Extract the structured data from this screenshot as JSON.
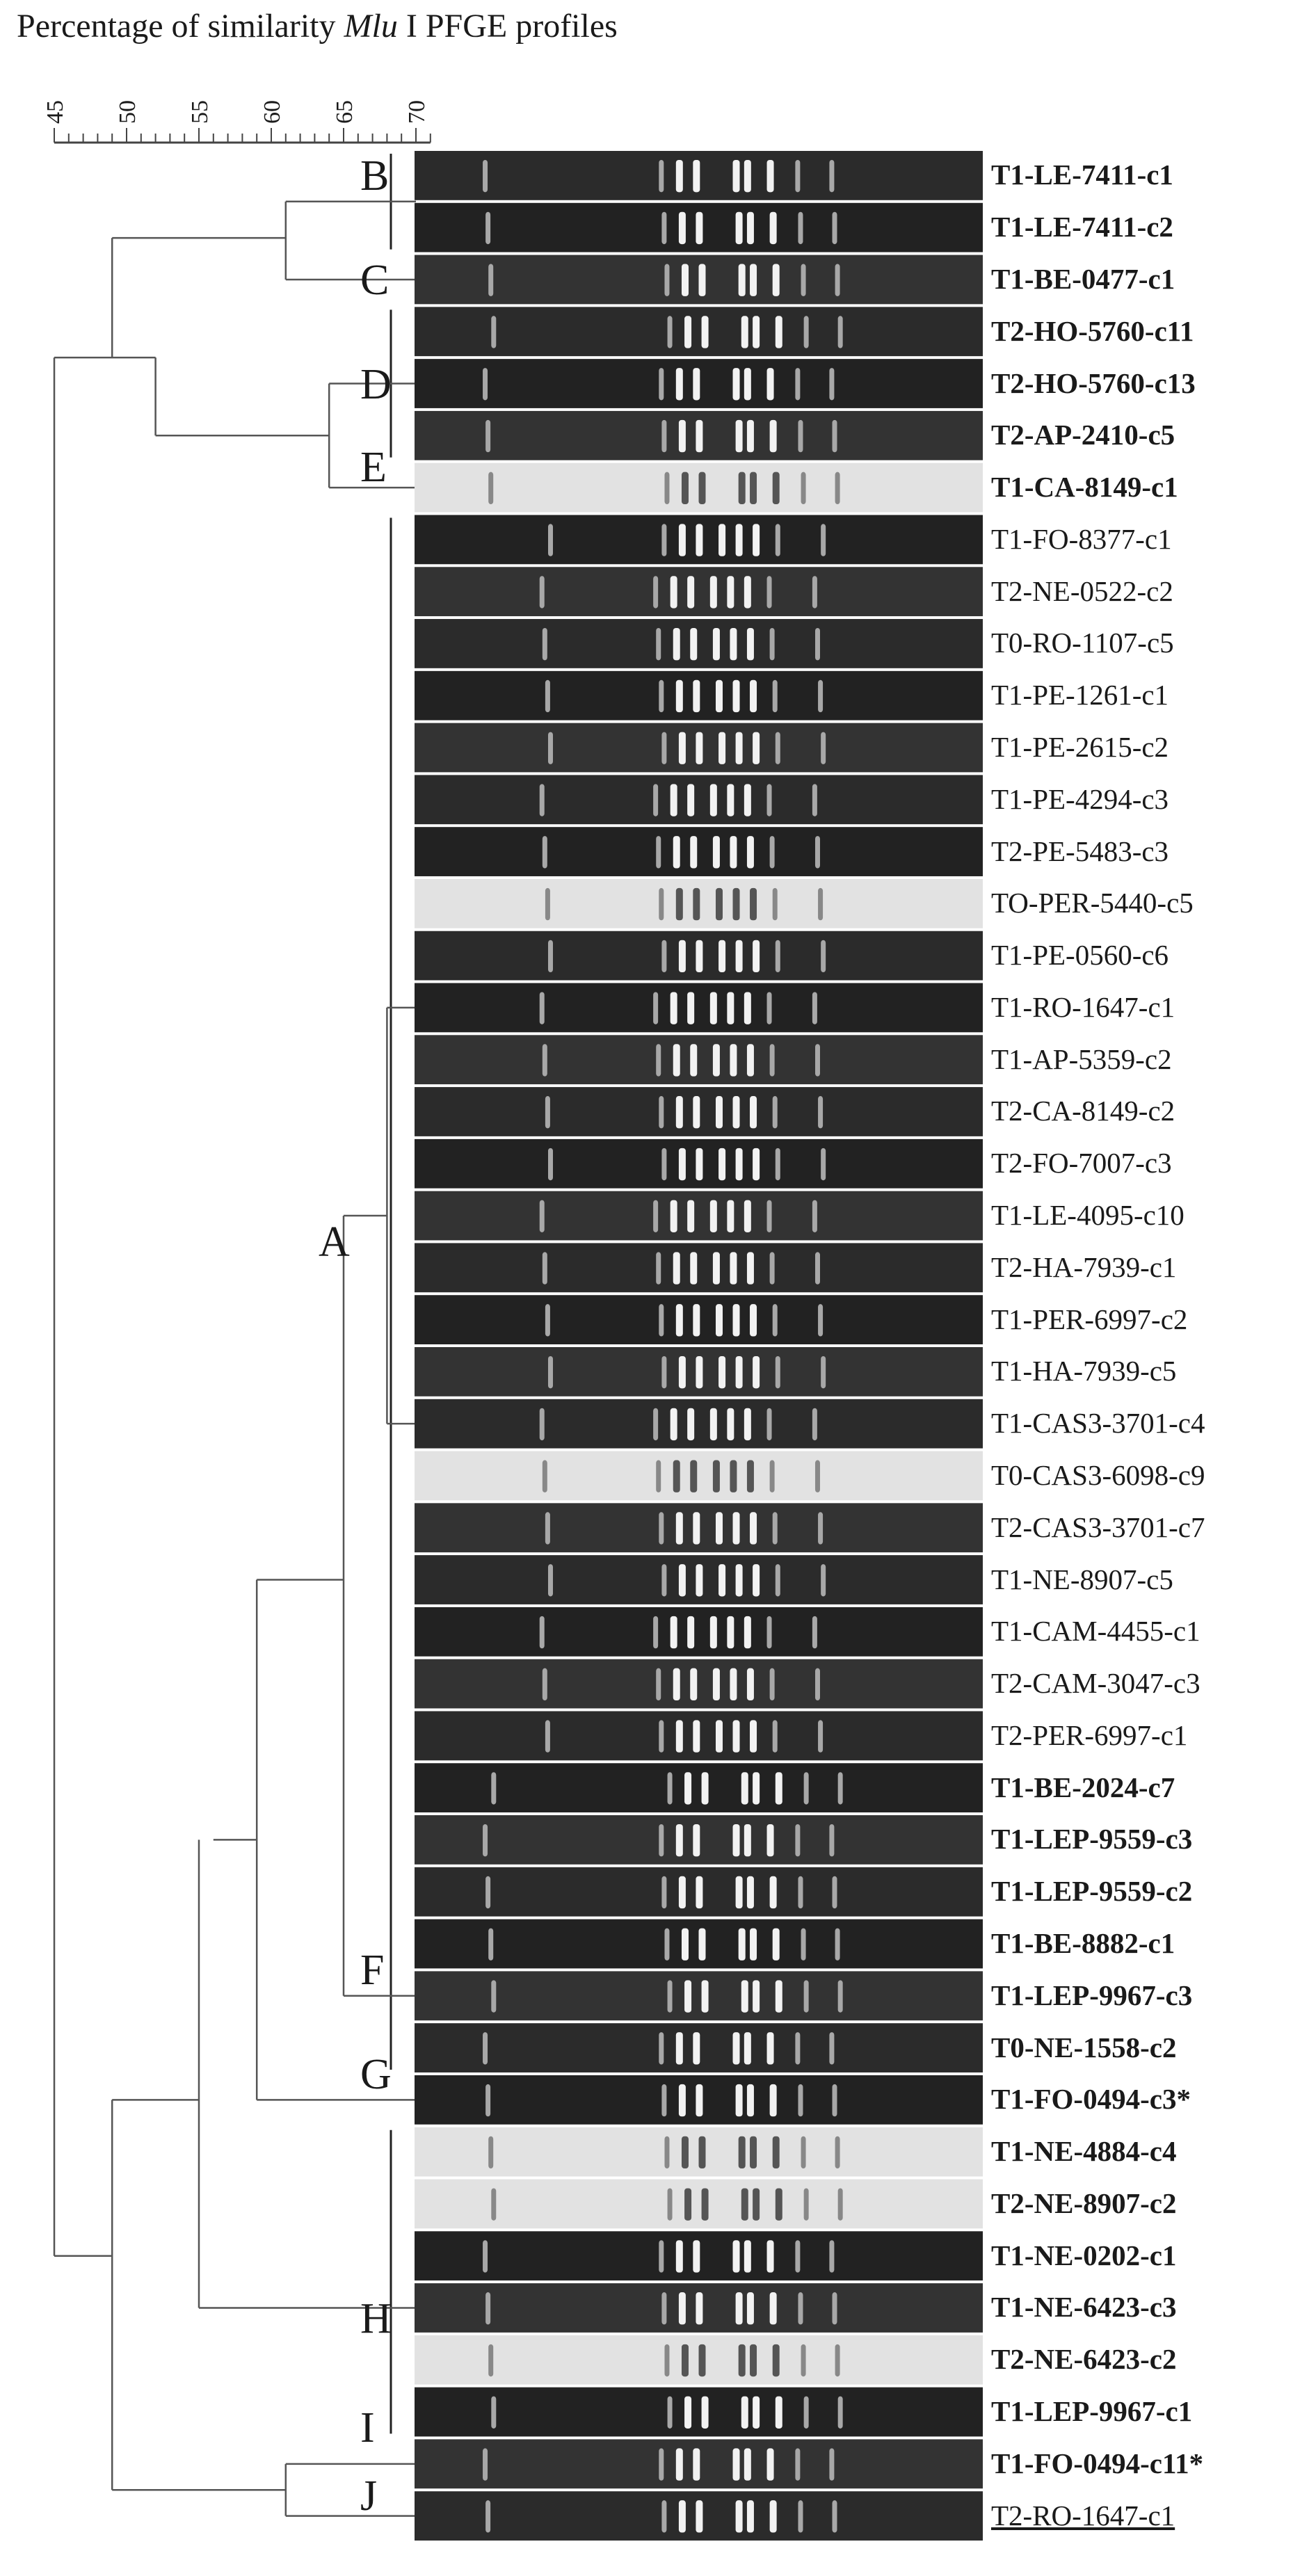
{
  "title": {
    "prefix": "Percentage of similarity ",
    "enzyme": "Mlu",
    "suffix": " I PFGE profiles"
  },
  "scale": {
    "tick_labels": [
      "45",
      "50",
      "55",
      "60",
      "65",
      "70"
    ]
  },
  "clusters": [
    "B",
    "C",
    "D",
    "E",
    "A",
    "F",
    "G",
    "H",
    "I",
    "J"
  ],
  "strains": [
    {
      "label": "T1-LE-7411-c1",
      "bold": true,
      "underline": false
    },
    {
      "label": "T1-LE-7411-c2",
      "bold": true,
      "underline": false
    },
    {
      "label": "T1-BE-0477-c1",
      "bold": true,
      "underline": false
    },
    {
      "label": "T2-HO-5760-c11",
      "bold": true,
      "underline": false
    },
    {
      "label": "T2-HO-5760-c13",
      "bold": true,
      "underline": false
    },
    {
      "label": "T2-AP-2410-c5",
      "bold": true,
      "underline": false
    },
    {
      "label": "T1-CA-8149-c1",
      "bold": true,
      "underline": false
    },
    {
      "label": "T1-FO-8377-c1",
      "bold": false,
      "underline": false
    },
    {
      "label": "T2-NE-0522-c2",
      "bold": false,
      "underline": false
    },
    {
      "label": "T0-RO-1107-c5",
      "bold": false,
      "underline": false
    },
    {
      "label": "T1-PE-1261-c1",
      "bold": false,
      "underline": false
    },
    {
      "label": "T1-PE-2615-c2",
      "bold": false,
      "underline": false
    },
    {
      "label": "T1-PE-4294-c3",
      "bold": false,
      "underline": false
    },
    {
      "label": "T2-PE-5483-c3",
      "bold": false,
      "underline": false
    },
    {
      "label": "TO-PER-5440-c5",
      "bold": false,
      "underline": false
    },
    {
      "label": "T1-PE-0560-c6",
      "bold": false,
      "underline": false
    },
    {
      "label": "T1-RO-1647-c1",
      "bold": false,
      "underline": false
    },
    {
      "label": "T1-AP-5359-c2",
      "bold": false,
      "underline": false
    },
    {
      "label": "T2-CA-8149-c2",
      "bold": false,
      "underline": false
    },
    {
      "label": "T2-FO-7007-c3",
      "bold": false,
      "underline": false
    },
    {
      "label": "T1-LE-4095-c10",
      "bold": false,
      "underline": false
    },
    {
      "label": "T2-HA-7939-c1",
      "bold": false,
      "underline": false
    },
    {
      "label": "T1-PER-6997-c2",
      "bold": false,
      "underline": false
    },
    {
      "label": "T1-HA-7939-c5",
      "bold": false,
      "underline": false
    },
    {
      "label": "T1-CAS3-3701-c4",
      "bold": false,
      "underline": false
    },
    {
      "label": "T0-CAS3-6098-c9",
      "bold": false,
      "underline": false
    },
    {
      "label": "T2-CAS3-3701-c7",
      "bold": false,
      "underline": false
    },
    {
      "label": "T1-NE-8907-c5",
      "bold": false,
      "underline": false
    },
    {
      "label": "T1-CAM-4455-c1",
      "bold": false,
      "underline": false
    },
    {
      "label": "T2-CAM-3047-c3",
      "bold": false,
      "underline": false
    },
    {
      "label": "T2-PER-6997-c1",
      "bold": false,
      "underline": false
    },
    {
      "label": "T1-BE-2024-c7",
      "bold": true,
      "underline": false
    },
    {
      "label": "T1-LEP-9559-c3",
      "bold": true,
      "underline": false
    },
    {
      "label": "T1-LEP-9559-c2",
      "bold": true,
      "underline": false
    },
    {
      "label": "T1-BE-8882-c1",
      "bold": true,
      "underline": false
    },
    {
      "label": "T1-LEP-9967-c3",
      "bold": true,
      "underline": false
    },
    {
      "label": "T0-NE-1558-c2",
      "bold": true,
      "underline": false
    },
    {
      "label": "T1-FO-0494-c3*",
      "bold": true,
      "underline": false
    },
    {
      "label": "T1-NE-4884-c4",
      "bold": true,
      "underline": false
    },
    {
      "label": "T2-NE-8907-c2",
      "bold": true,
      "underline": false
    },
    {
      "label": "T1-NE-0202-c1",
      "bold": true,
      "underline": false
    },
    {
      "label": "T1-NE-6423-c3",
      "bold": true,
      "underline": false
    },
    {
      "label": "T2-NE-6423-c2",
      "bold": true,
      "underline": false
    },
    {
      "label": "T1-LEP-9967-c1",
      "bold": true,
      "underline": false
    },
    {
      "label": "T1-FO-0494-c11*",
      "bold": true,
      "underline": false
    },
    {
      "label": "T2-RO-1647-c1",
      "bold": false,
      "underline": true
    }
  ]
}
